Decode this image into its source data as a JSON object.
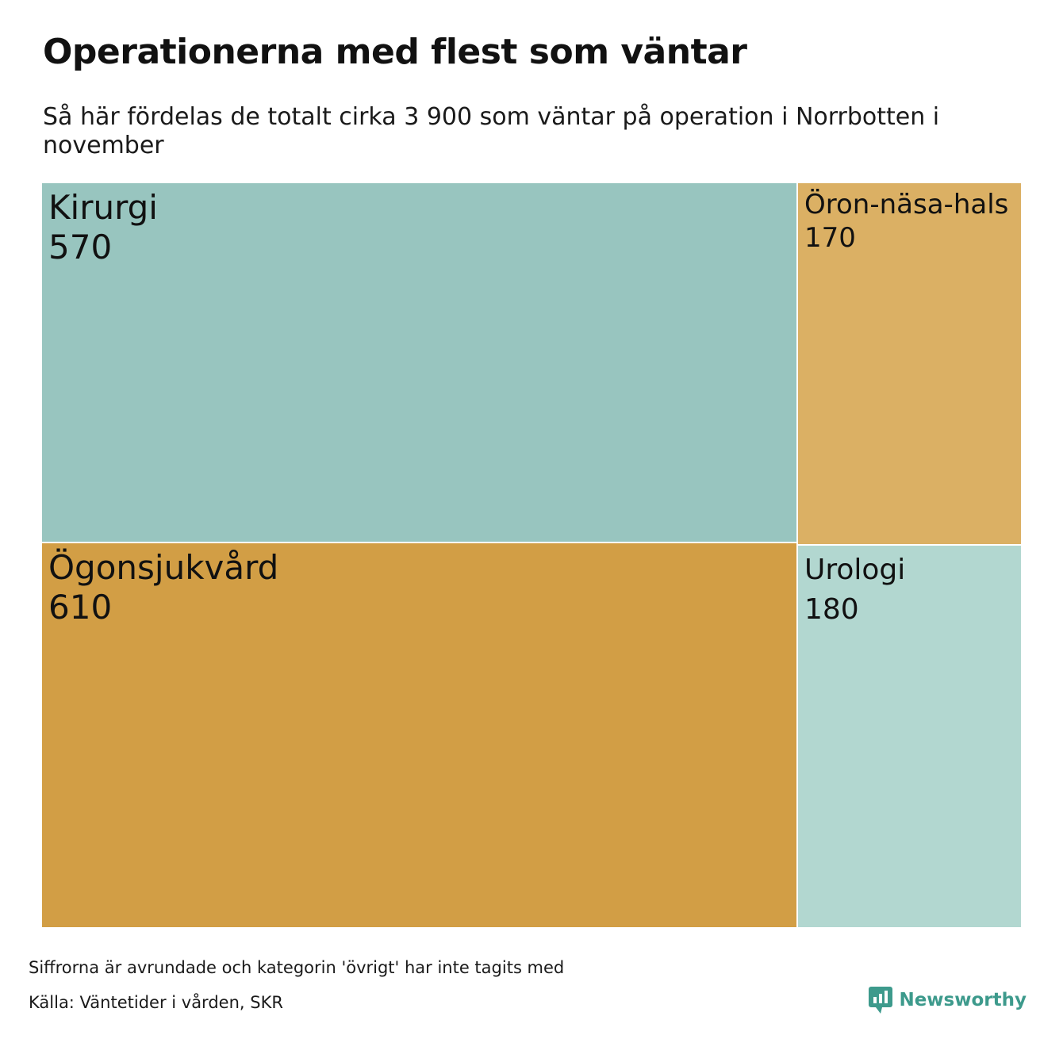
{
  "header": {
    "title": "Operationerna med flest som väntar",
    "subtitle": "Så här fördelas de totalt cirka 3 900 som väntar på operation i Norrbotten i november"
  },
  "chart_data": {
    "type": "treemap",
    "title": "Operationerna med flest som väntar",
    "subtitle": "Så här fördelas de totalt cirka 3 900 som väntar på operation i Norrbotten i november",
    "items": [
      {
        "name": "Ögonsjukvård",
        "value": 610,
        "label": "610",
        "color": "#d29e45"
      },
      {
        "name": "Kirurgi",
        "value": 570,
        "label": "570",
        "color": "#98c5bf"
      },
      {
        "name": "Urologi",
        "value": 180,
        "label": "180",
        "color": "#b2d7d0"
      },
      {
        "name": "Öron-näsa-hals",
        "value": 170,
        "label": "170",
        "color": "#dbb064"
      }
    ]
  },
  "footer": {
    "note": "Siffrorna är avrundade och kategorin 'övrigt' har inte tagits med",
    "source": "Källa: Väntetider i vården, SKR",
    "brand": "Newsworthy",
    "brand_color": "#3d9a8c",
    "brand_icon": "newsworthy-logo-icon"
  }
}
